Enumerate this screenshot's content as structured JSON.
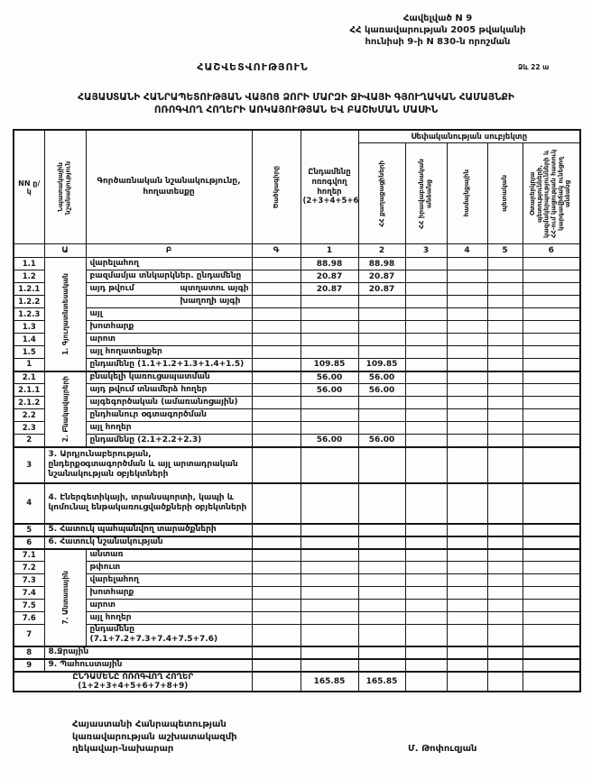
{
  "ink_color": "#161616",
  "header": {
    "appendix_lines": [
      "Հավելված N 9",
      "ՀՀ կառավարության 2005 թվականի",
      "հունիսի 9-ի N 830-ն որոշման"
    ],
    "form_mark": "Ձև 22 ա",
    "report_title": "ՀԱՇՎԵՏՎՈՒԹՅՈՒՆ",
    "subtitle_line1": "ՀԱՅԱՍՏԱՆԻ ՀԱՆՐԱՊԵՏՈՒԹՅԱՆ ՎԱՅՈՑ ՁՈՐԻ ՄԱՐԶԻ ՋԻՎԱՅԻ ԳՅՈՒՂԱԿԱՆ ՀԱՄԱՅՆՔԻ",
    "subtitle_line2": "ՈՌՈԳՎՈՂ ՀՈՂԵՐԻ ԱՌԿԱՅՈՒԹՅԱՆ ԵՎ ԲԱՇԽՄԱՆ ՄԱՍԻՆ"
  },
  "table": {
    "header": {
      "nn": "NN ը/կ",
      "target": "Նպատակային նշանակություն",
      "functional": "Գործառնական նշանակությունը, հողատեսքը",
      "code": "Ծածկագիրը",
      "total": "Ընդամենը ոռոգվող հողեր (2+3+4+5+6)",
      "ownership": "Սեփականության սուբյեկտը",
      "owners": [
        "ՀՀ քաղաքացիների",
        "ՀՀ իրավաբանական անձանց",
        "համայնքային",
        "պետական",
        "Օտարերկրյա պետությունների, կազմակերպությունների և ՀՀ-ում կացության հատուկ կարգավիճակ ունեցող անձանց"
      ],
      "letters": [
        "",
        "Ա",
        "Բ",
        "Գ",
        "1",
        "2",
        "3",
        "4",
        "5",
        "6"
      ]
    },
    "groups": {
      "g1": {
        "label": "1. Գյուղատնտեսական",
        "span": 9
      },
      "g2": {
        "label": "2. Բնակավայրերի",
        "span": 6
      },
      "g7": {
        "label": "7. Անտառային",
        "span": 7
      }
    },
    "rows": [
      {
        "nn": "1.1",
        "group": "g1",
        "label": "վարելահող",
        "v1": "88.98",
        "v2": "88.98"
      },
      {
        "nn": "1.2",
        "label": "բազմամյա տնկարկներ. ընդամենը",
        "v1": "20.87",
        "v2": "20.87"
      },
      {
        "nn": "1.2.1",
        "label": "այդ թվում",
        "label2": "պտղատու այգի",
        "v1": "20.87",
        "v2": "20.87"
      },
      {
        "nn": "1.2.2",
        "label": "",
        "label2": "խաղողի այգի"
      },
      {
        "nn": "1.2.3",
        "label": "այլ"
      },
      {
        "nn": "1.3",
        "label": "խոտհարք"
      },
      {
        "nn": "1.4",
        "label": "արոտ"
      },
      {
        "nn": "1.5",
        "label": "այլ հողատեսքեր"
      },
      {
        "nn": "1",
        "label": "ընդամենը (1.1+1.2+1.3+1.4+1.5)",
        "v1": "109.85",
        "v2": "109.85"
      },
      {
        "nn": "2.1",
        "group": "g2",
        "label": "բնակելի կառուցապատման",
        "v1": "56.00",
        "v2": "56.00",
        "sep": true
      },
      {
        "nn": "2.1.1",
        "label": "այդ թվում տնամերձ հողեր",
        "v1": "56.00",
        "v2": "56.00"
      },
      {
        "nn": "2.1.2",
        "label": "այգեգործական (ամառանոցային)"
      },
      {
        "nn": "2.2",
        "label": "ընդհանուր օգտագործման"
      },
      {
        "nn": "2.3",
        "label": "այլ հողեր"
      },
      {
        "nn": "2",
        "label": "ընդամենը (2.1+2.2+2.3)",
        "v1": "56.00",
        "v2": "56.00"
      },
      {
        "nn": "3",
        "type": "wide",
        "label": "3. Արդյունաբերության, ընդերքօգտագործման և այլ արտադրական նշանակության օբյեկտների",
        "h": 40,
        "sep": true
      },
      {
        "nn": "4",
        "type": "wide",
        "label": "4. Էներգետիկայի, տրանսպորտի, կապի և կոմունալ ենթակառուցվածքների օբյեկտների",
        "h": 45,
        "sep": true
      },
      {
        "nn": "5",
        "type": "wide",
        "label": "5. Հատուկ պահպանվող տարածքների",
        "sep": true
      },
      {
        "nn": "6",
        "type": "wide",
        "label": "6. Հատուկ նշանակության",
        "sep": true
      },
      {
        "nn": "7.1",
        "group": "g7",
        "label": "անտառ",
        "sep": true
      },
      {
        "nn": "7.2",
        "label": "թփուտ"
      },
      {
        "nn": "7.3",
        "label": "վարելահող"
      },
      {
        "nn": "7.4",
        "label": "խոտհարք"
      },
      {
        "nn": "7.5",
        "label": "արոտ"
      },
      {
        "nn": "7.6",
        "label": "այլ հողեր"
      },
      {
        "nn": "7",
        "label": "ընդամենը (7.1+7.2+7.3+7.4+7.5+7.6)"
      },
      {
        "nn": "8",
        "type": "wide",
        "label": "8.Ջրային",
        "sep": true
      },
      {
        "nn": "9",
        "type": "wide",
        "label": "9. Պահուստային",
        "sep": true
      },
      {
        "type": "grand",
        "label": "ԸՆԴԱՄԵՆԸ ՈՌՈԳՎՈՂ ՀՈՂԵՐ (1+2+3+4+5+6+7+8+9)",
        "v1": "165.85",
        "v2": "165.85",
        "h": 16,
        "sep": true
      }
    ]
  },
  "signature": {
    "lines": [
      "Հայաստանի Հանրապետության",
      "կառավարության աշխատակազմի",
      "ղեկավար-նախարար"
    ],
    "name": "Մ. Թոփուզյան"
  }
}
